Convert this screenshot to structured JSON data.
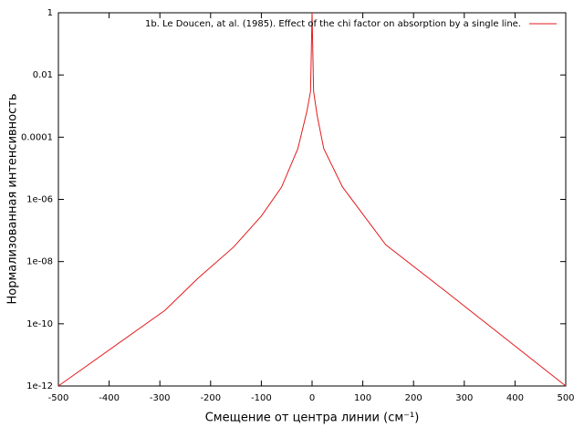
{
  "chart_data": {
    "type": "line",
    "xlabel": "Смещение от центра линии (см⁻¹)",
    "ylabel": "Нормализованная интенсивность",
    "x": [
      -500,
      -290,
      -225,
      -155,
      -100,
      -60,
      -28,
      -10,
      -3,
      0,
      3,
      10,
      23,
      60,
      145,
      265,
      500
    ],
    "series": [
      {
        "name": "1b. Le Doucen, at al. (1985). Effect of the chi factor on absorption by a single line.",
        "color": "#e41a1c",
        "values": [
          1e-12,
          2.7e-10,
          2.9e-09,
          2.9e-08,
          2.9e-07,
          2.5e-06,
          4.3e-05,
          0.0007,
          0.003,
          1,
          0.003,
          0.0005,
          4.3e-05,
          2.5e-06,
          3.5e-08,
          1.05e-09,
          1e-12
        ]
      }
    ],
    "xlim": [
      -500,
      500
    ],
    "xticks": [
      -500,
      -400,
      -300,
      -200,
      -100,
      0,
      100,
      200,
      300,
      400,
      500
    ],
    "ylim": [
      1e-12,
      1
    ],
    "yticks": [
      {
        "value": 1e-12,
        "label": "1e-12"
      },
      {
        "value": 1e-10,
        "label": "1e-10"
      },
      {
        "value": 1e-08,
        "label": "1e-08"
      },
      {
        "value": 1e-06,
        "label": "1e-06"
      },
      0.0001,
      0.01,
      1
    ],
    "log_y": true,
    "legend": "top-right"
  }
}
